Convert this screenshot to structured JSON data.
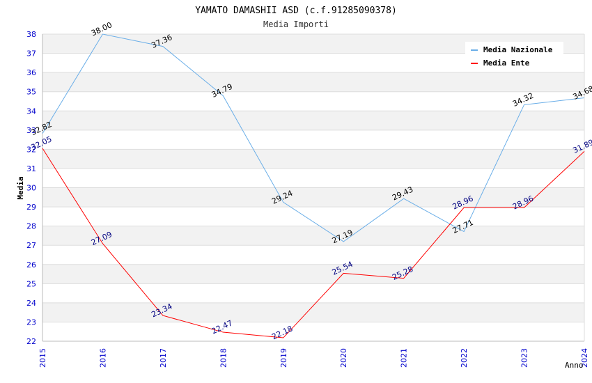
{
  "chart_data": {
    "type": "line",
    "title": "YAMATO DAMASHII ASD (c.f.91285090378)",
    "subtitle": "Media Importi",
    "xlabel": "Anno",
    "ylabel": "Media",
    "categories": [
      "2015",
      "2016",
      "2017",
      "2018",
      "2019",
      "2020",
      "2021",
      "2022",
      "2023",
      "2024"
    ],
    "ylim": [
      22,
      38
    ],
    "yticks": [
      "22",
      "23",
      "24",
      "25",
      "26",
      "27",
      "28",
      "29",
      "30",
      "31",
      "32",
      "33",
      "34",
      "35",
      "36",
      "37",
      "38"
    ],
    "grid": true,
    "legend_position": "top-right",
    "series": [
      {
        "name": "Media Nazionale",
        "color": "#6aaee8",
        "label_color": "#000000",
        "values": [
          32.82,
          38.0,
          37.36,
          34.79,
          29.24,
          27.19,
          29.43,
          27.71,
          34.32,
          34.68
        ],
        "labels": [
          "32.82",
          "38.00",
          "37.36",
          "34.79",
          "29.24",
          "27.19",
          "29.43",
          "27.71",
          "34.32",
          "34.68"
        ]
      },
      {
        "name": "Media Ente",
        "color": "#ff0000",
        "label_color": "#000080",
        "values": [
          32.05,
          27.09,
          23.34,
          22.47,
          22.18,
          25.54,
          25.28,
          28.96,
          28.96,
          31.89
        ],
        "labels": [
          "32.05",
          "27.09",
          "23.34",
          "22.47",
          "22.18",
          "25.54",
          "25.28",
          "28.96",
          "28.96",
          "31.89"
        ]
      }
    ],
    "colors": {
      "tick_label": "#0000cc",
      "band": "#f2f2f2",
      "grid": "#dddddd"
    }
  }
}
